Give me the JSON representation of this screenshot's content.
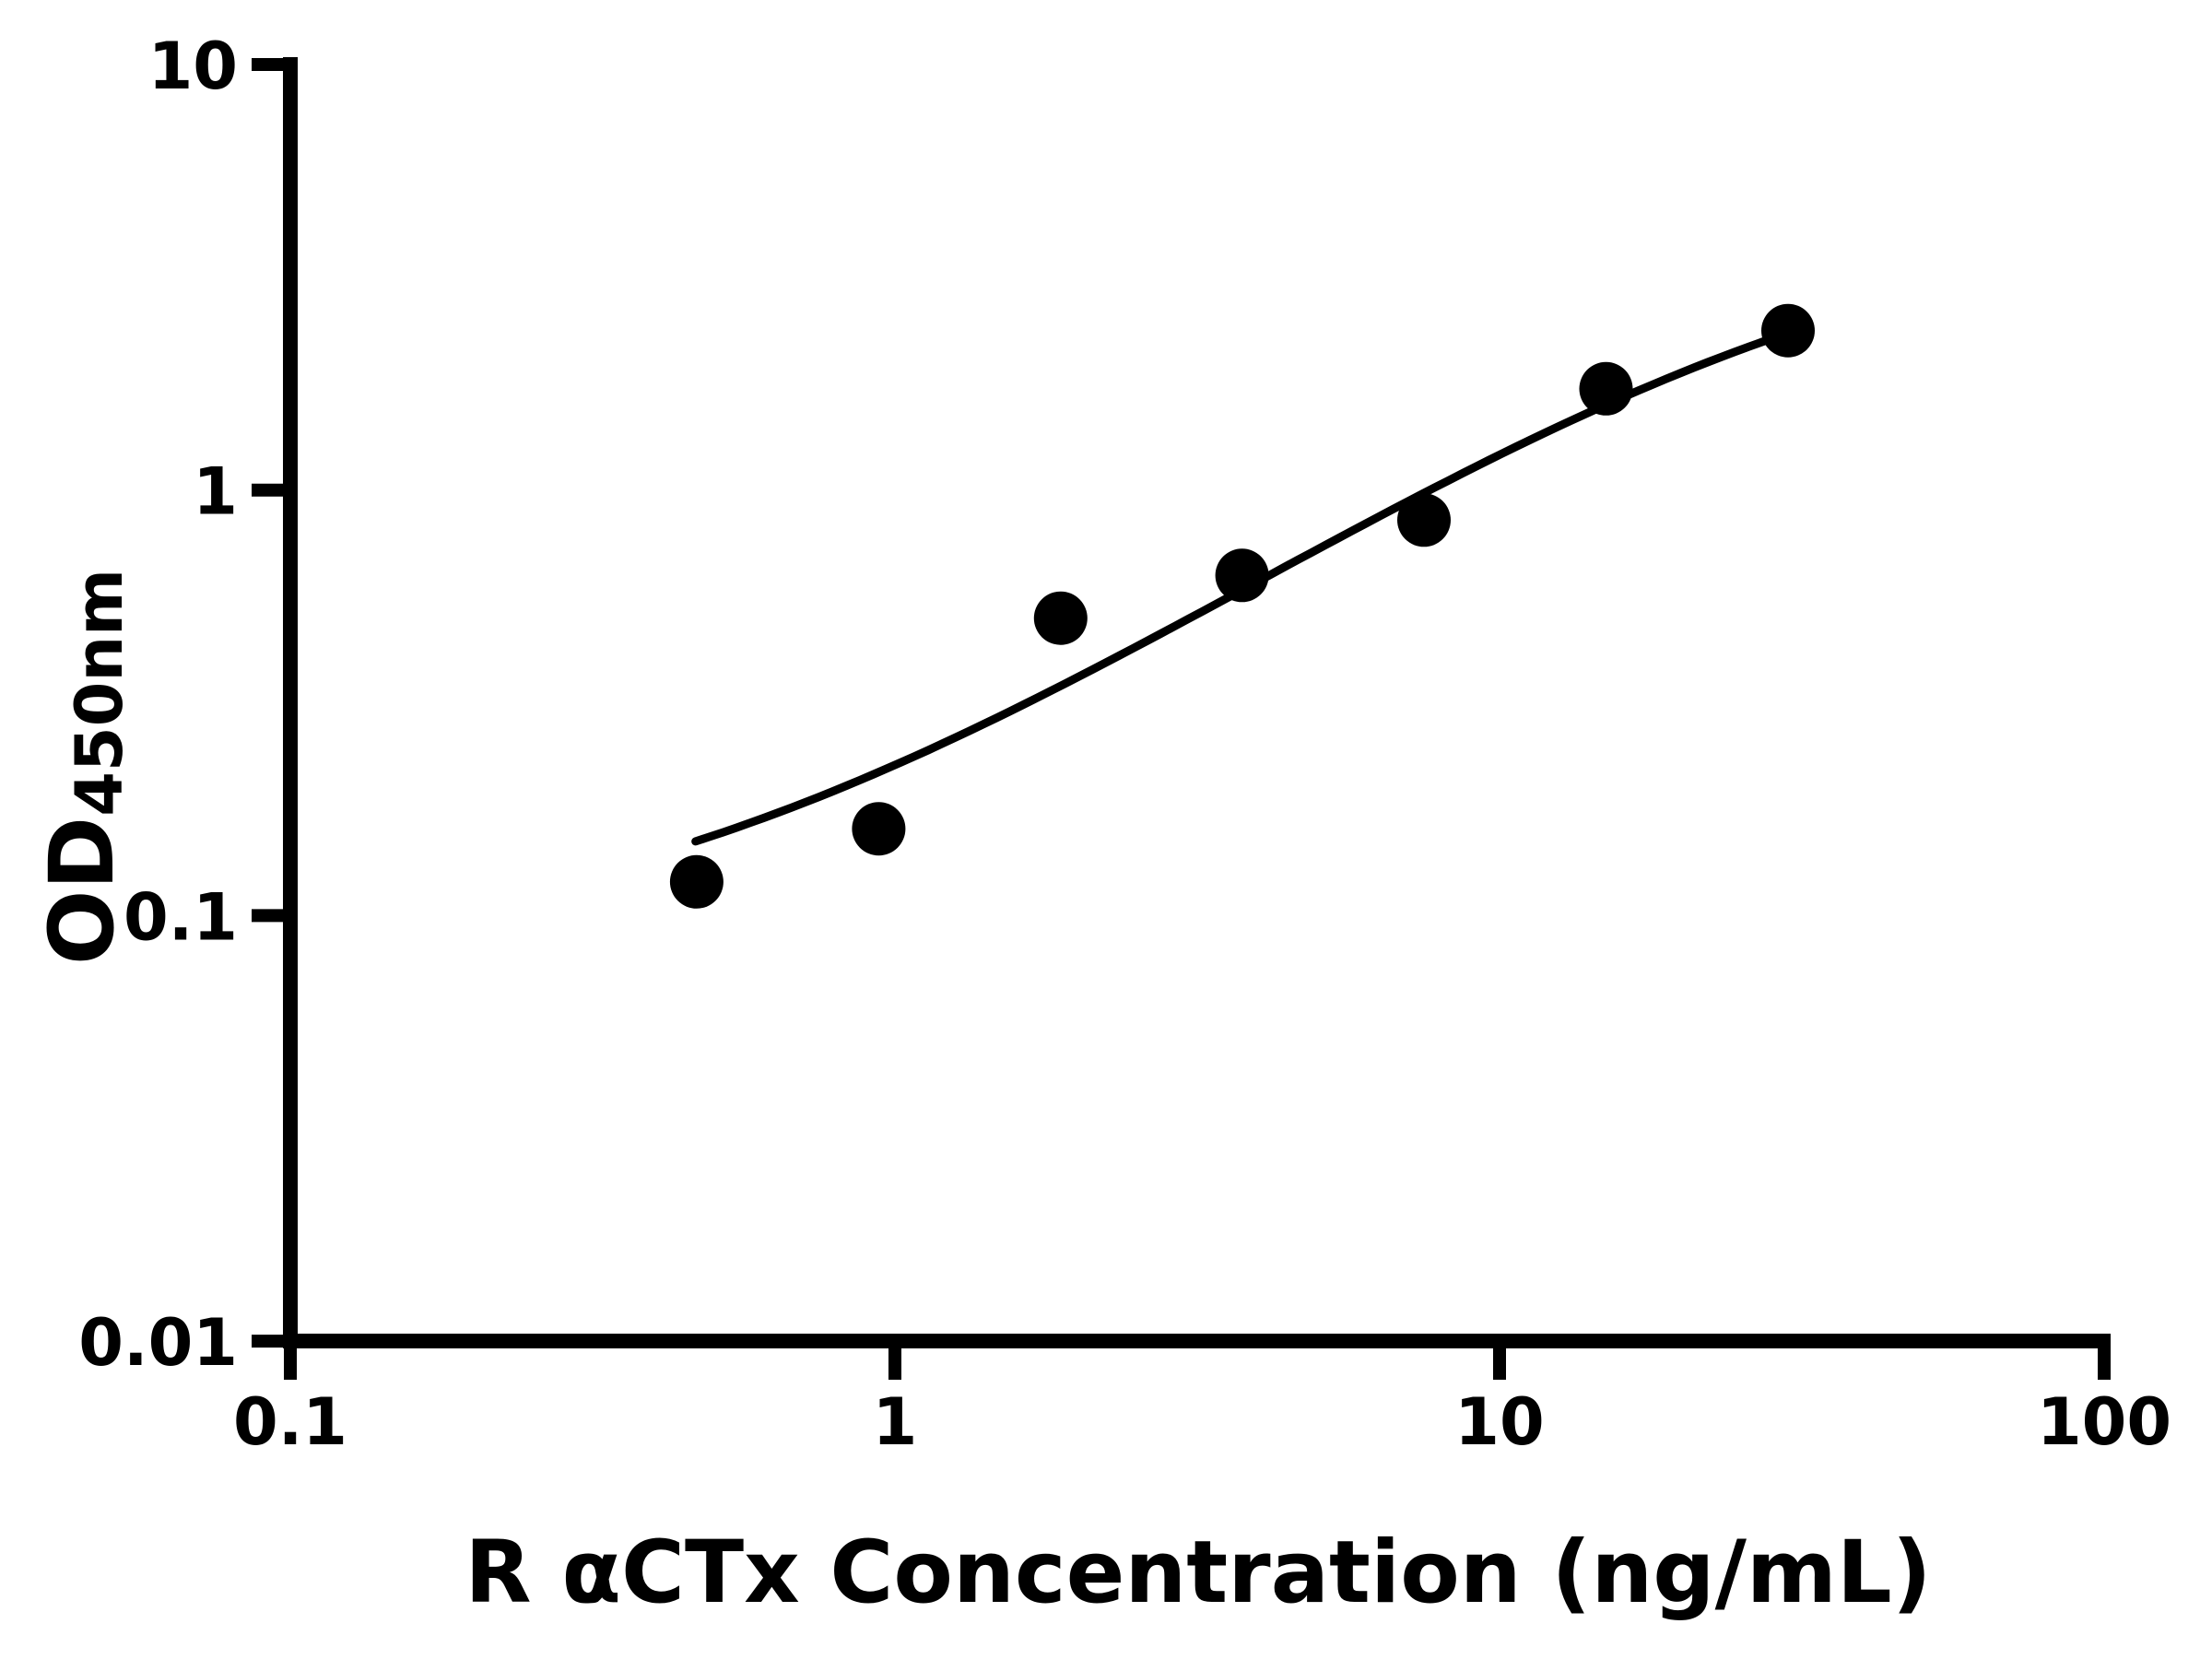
{
  "figure": {
    "background_color": "#ffffff",
    "ink_color": "#000000"
  },
  "chart_data": {
    "type": "scatter",
    "title": "",
    "xlabel": "R αCTx Concentration (ng/mL)",
    "ylabel": "OD450nm",
    "ylabel_parts": {
      "main": "OD",
      "subscript": "450nm"
    },
    "x_scale": "log10",
    "y_scale": "log10",
    "xlim": [
      0.1,
      100
    ],
    "ylim": [
      0.01,
      10
    ],
    "grid": false,
    "legend": "none",
    "x_ticks": [
      {
        "value": 0.1,
        "label": "0.1"
      },
      {
        "value": 1,
        "label": "1"
      },
      {
        "value": 10,
        "label": "10"
      },
      {
        "value": 100,
        "label": "100"
      }
    ],
    "y_ticks": [
      {
        "value": 10,
        "label": "10"
      },
      {
        "value": 1,
        "label": "1"
      },
      {
        "value": 0.1,
        "label": "0.1"
      },
      {
        "value": 0.01,
        "label": "0.01"
      }
    ],
    "series": [
      {
        "name": "standard-curve-points",
        "marker": "filled-circle",
        "color": "#000000",
        "points": [
          {
            "x": 0.47,
            "od": 0.12
          },
          {
            "x": 0.94,
            "od": 0.16
          },
          {
            "x": 1.88,
            "od": 0.5
          },
          {
            "x": 3.75,
            "od": 0.63
          },
          {
            "x": 7.5,
            "od": 0.85
          },
          {
            "x": 15,
            "od": 1.73
          },
          {
            "x": 30,
            "od": 2.37
          }
        ]
      }
    ],
    "fit_curve": {
      "name": "four-parameter-logistic-fit",
      "color": "#000000",
      "bottom": 0.08,
      "top": 4.6,
      "ec50": 30,
      "hill": 1.0,
      "x_range": [
        0.468,
        30.2
      ]
    }
  }
}
